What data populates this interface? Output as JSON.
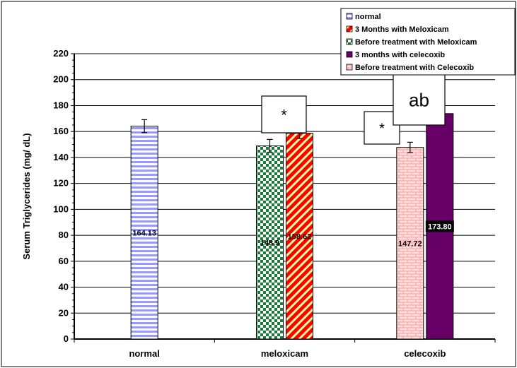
{
  "chart_data": {
    "type": "bar",
    "ylabel": "Serum Triglycerides (mg/ dL)",
    "xlabel": "",
    "ylim": [
      0,
      220
    ],
    "ytick_step": 20,
    "grid": true,
    "legend_position": "top-right",
    "categories": [
      "normal",
      "meloxicam",
      "celecoxib"
    ],
    "bars": [
      {
        "category": 0,
        "series": 0,
        "value": 164.13,
        "error": 5,
        "label": "164.13"
      },
      {
        "category": 1,
        "series": 2,
        "value": 148.9,
        "error": 5,
        "label": "148.9"
      },
      {
        "category": 1,
        "series": 1,
        "value": 158.62,
        "error": 4,
        "label": "158.62"
      },
      {
        "category": 2,
        "series": 4,
        "value": 147.72,
        "error": 4,
        "label": "147.72"
      },
      {
        "category": 2,
        "series": 3,
        "value": 173.8,
        "error": 0,
        "label": "173.80"
      }
    ],
    "series": [
      {
        "name": "normal",
        "color": "#9999ff",
        "pattern": "hstripe"
      },
      {
        "name": "3 Months with Meloxicam",
        "color": "#ff0000",
        "pattern": "diag"
      },
      {
        "name": "Before treatment with  Meloxicam",
        "color": "#1a7a3a",
        "pattern": "check"
      },
      {
        "name": "3 months with celecoxib",
        "color": "#660066",
        "pattern": "solid"
      },
      {
        "name": "Before treatment with Celecoxib",
        "color": "#ff8080",
        "pattern": "brick"
      }
    ],
    "annotations": [
      {
        "text": "*",
        "near": "meloxicam"
      },
      {
        "text": "*",
        "near": "celecoxib-before"
      },
      {
        "text": "ab",
        "near": "celecoxib-3months"
      }
    ]
  }
}
